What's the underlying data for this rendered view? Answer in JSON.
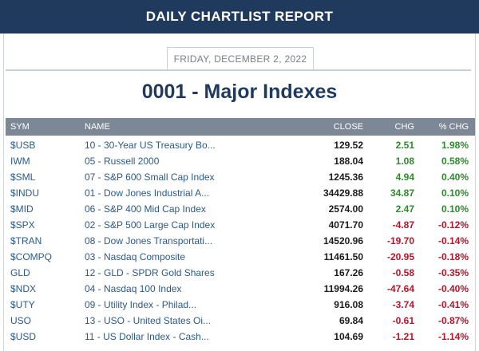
{
  "header": {
    "title": "DAILY CHARTLIST REPORT"
  },
  "report": {
    "date": "FRIDAY, DECEMBER 2, 2022",
    "title": "0001 - Major Indexes"
  },
  "table": {
    "columns": {
      "sym": "SYM",
      "name": "NAME",
      "close": "CLOSE",
      "chg": "CHG",
      "pct": "% CHG"
    },
    "rows": [
      {
        "sym": "$USB",
        "name": "10 - 30-Year US Treasury Bo...",
        "close": "129.52",
        "chg": "2.51",
        "pct": "1.98%",
        "dir": "up"
      },
      {
        "sym": "IWM",
        "name": "05 - Russell 2000",
        "close": "188.04",
        "chg": "1.08",
        "pct": "0.58%",
        "dir": "up"
      },
      {
        "sym": "$SML",
        "name": "07 - S&P 600 Small Cap Index",
        "close": "1245.36",
        "chg": "4.94",
        "pct": "0.40%",
        "dir": "up"
      },
      {
        "sym": "$INDU",
        "name": "01 - Dow Jones Industrial A...",
        "close": "34429.88",
        "chg": "34.87",
        "pct": "0.10%",
        "dir": "up"
      },
      {
        "sym": "$MID",
        "name": "06 - S&P 400 Mid Cap Index",
        "close": "2574.00",
        "chg": "2.47",
        "pct": "0.10%",
        "dir": "up"
      },
      {
        "sym": "$SPX",
        "name": "02 - S&P 500 Large Cap Index",
        "close": "4071.70",
        "chg": "-4.87",
        "pct": "-0.12%",
        "dir": "down"
      },
      {
        "sym": "$TRAN",
        "name": "08 - Dow Jones Transportati...",
        "close": "14520.96",
        "chg": "-19.70",
        "pct": "-0.14%",
        "dir": "down"
      },
      {
        "sym": "$COMPQ",
        "name": "03 - Nasdaq Composite",
        "close": "11461.50",
        "chg": "-20.95",
        "pct": "-0.18%",
        "dir": "down"
      },
      {
        "sym": "GLD",
        "name": "12 - GLD - SPDR Gold Shares",
        "close": "167.26",
        "chg": "-0.58",
        "pct": "-0.35%",
        "dir": "down"
      },
      {
        "sym": "$NDX",
        "name": "04 - Nasdaq 100 Index",
        "close": "11994.26",
        "chg": "-47.64",
        "pct": "-0.40%",
        "dir": "down"
      },
      {
        "sym": "$UTY",
        "name": "09 - Utility Index - Philad...",
        "close": "916.08",
        "chg": "-3.74",
        "pct": "-0.41%",
        "dir": "down"
      },
      {
        "sym": "USO",
        "name": "13 - USO - United States Oi...",
        "close": "69.84",
        "chg": "-0.61",
        "pct": "-0.87%",
        "dir": "down"
      },
      {
        "sym": "$USD",
        "name": "11 - US Dollar Index - Cash...",
        "close": "104.69",
        "chg": "-1.21",
        "pct": "-1.14%",
        "dir": "down"
      }
    ]
  },
  "colors": {
    "header_bg": "#1f3a5c",
    "table_header_bg": "#7c8896",
    "link": "#2a5a8a",
    "positive": "#2e8a2e",
    "negative": "#b3162b"
  }
}
